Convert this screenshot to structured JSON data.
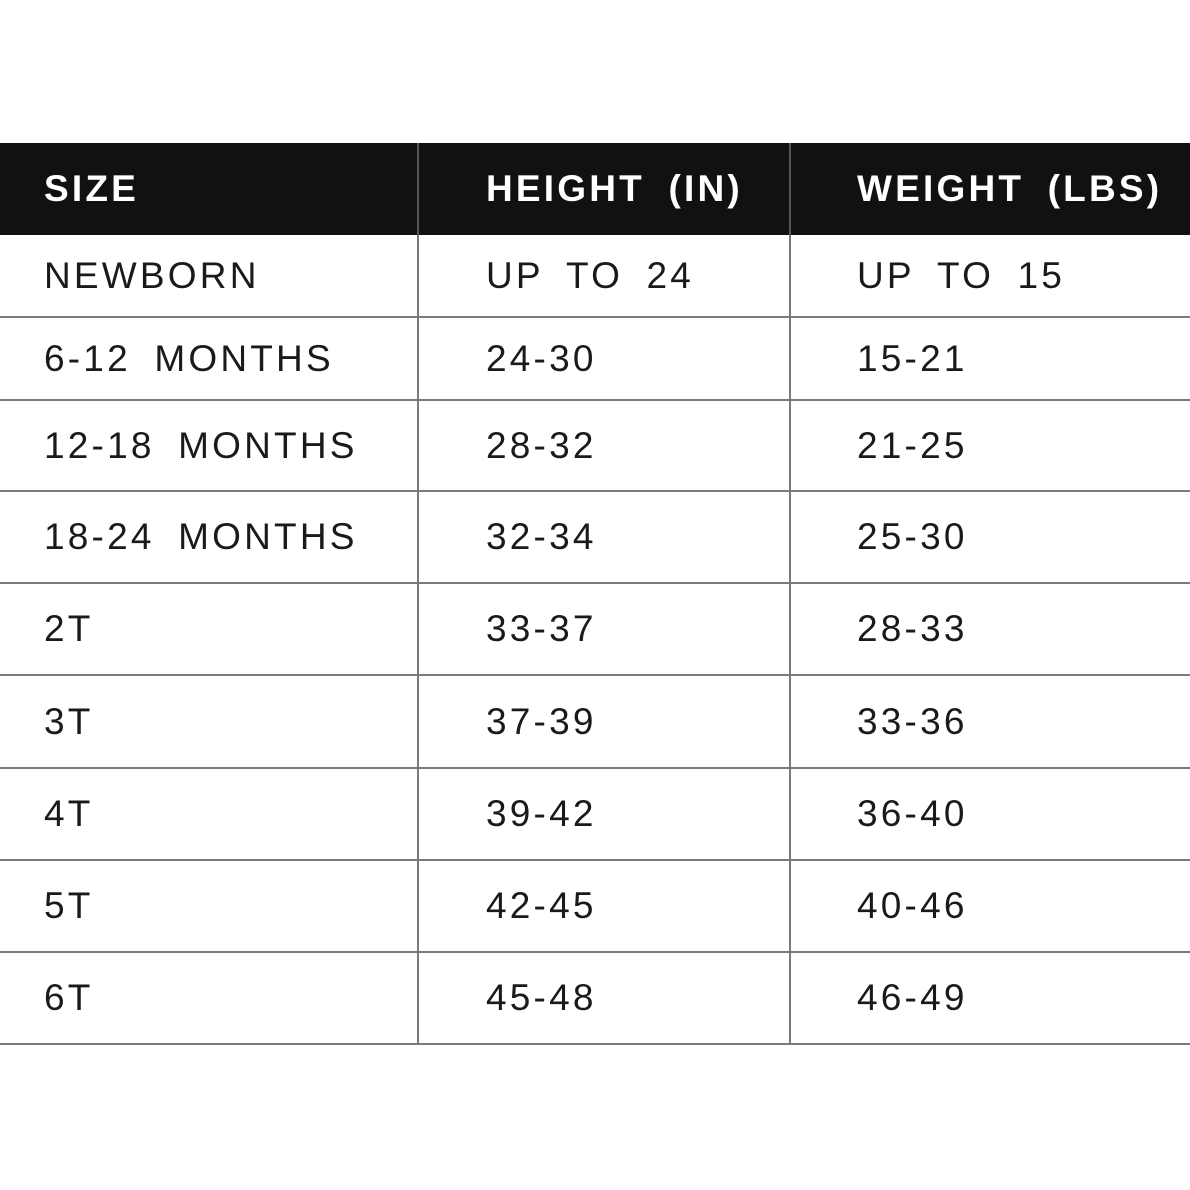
{
  "headers": [
    "SIZE",
    "HEIGHT (IN)",
    "WEIGHT (LBS)"
  ],
  "rows": [
    [
      "NEWBORN",
      "UP TO 24",
      "UP TO 15"
    ],
    [
      "6-12 MONTHS",
      "24-30",
      "15-21"
    ],
    [
      "12-18 MONTHS",
      "28-32",
      "21-25"
    ],
    [
      "18-24 MONTHS",
      "32-34",
      "25-30"
    ],
    [
      "2T",
      "33-37",
      "28-33"
    ],
    [
      "3T",
      "37-39",
      "33-36"
    ],
    [
      "4T",
      "39-42",
      "36-40"
    ],
    [
      "5T",
      "42-45",
      "40-46"
    ],
    [
      "6T",
      "45-48",
      "46-49"
    ]
  ],
  "colors": {
    "header_bg": "#111111",
    "header_text": "#ffffff",
    "grid": "#7a7a7a",
    "text": "#1a1a1a"
  }
}
